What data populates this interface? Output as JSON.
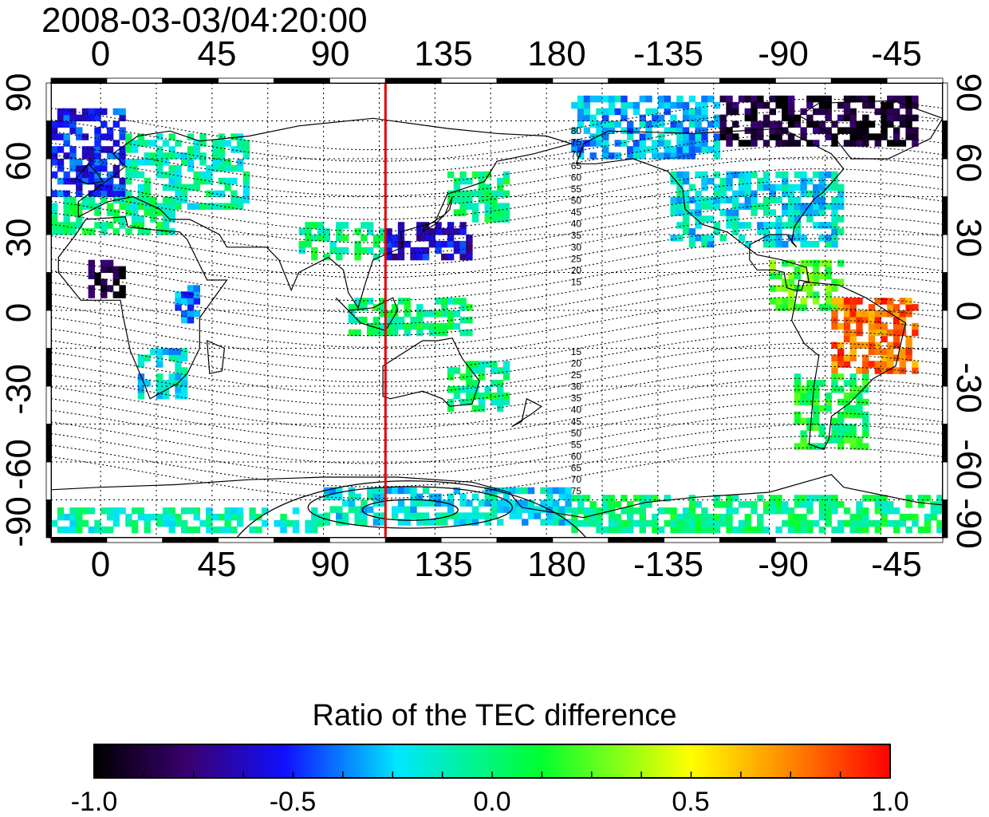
{
  "title": "2008-03-03/04:20:00",
  "axes": {
    "top_ticks": [
      "0",
      "45",
      "90",
      "135",
      "180",
      "-135",
      "-90",
      "-45"
    ],
    "bottom_ticks": [
      "0",
      "45",
      "90",
      "135",
      "180",
      "-135",
      "-90",
      "-45"
    ],
    "left_ticks": [
      "90",
      "60",
      "30",
      "0",
      "-30",
      "-60",
      "-90"
    ],
    "right_ticks": [
      "90",
      "60",
      "30",
      "0",
      "-30",
      "-60",
      "-90"
    ]
  },
  "contour_labels_north": [
    "80",
    "75",
    "70",
    "65",
    "60",
    "55",
    "50",
    "45",
    "40",
    "35",
    "30",
    "25",
    "20",
    "15"
  ],
  "contour_labels_south": [
    "15",
    "20",
    "25",
    "30",
    "35",
    "40",
    "45",
    "50",
    "55",
    "60",
    "65",
    "70",
    "75"
  ],
  "meridian_marker": {
    "longitude": 115,
    "color": "#e00000"
  },
  "colorbar": {
    "title": "Ratio of the TEC difference",
    "ticks": [
      "-1.0",
      "-0.5",
      "0.0",
      "0.5",
      "1.0"
    ],
    "range": [
      -1.0,
      1.0
    ],
    "colors": [
      "#000000",
      "#3a0070",
      "#1010ff",
      "#00e6ff",
      "#00ff30",
      "#ffff00",
      "#ff8000",
      "#ff0000"
    ]
  },
  "chart_data": {
    "type": "heatmap",
    "title": "2008-03-03/04:20:00",
    "x_range_deg": [
      -20,
      340
    ],
    "y_range_deg": [
      -90,
      90
    ],
    "value_range": [
      -1.0,
      1.0
    ],
    "value_label": "Ratio of the TEC difference",
    "grid": true,
    "regions": [
      {
        "lon": [
          -20,
          10
        ],
        "lat": [
          45,
          80
        ],
        "value": -0.5
      },
      {
        "lon": [
          10,
          60
        ],
        "lat": [
          40,
          70
        ],
        "value": -0.1
      },
      {
        "lon": [
          -20,
          30
        ],
        "lat": [
          30,
          45
        ],
        "value": 0.0
      },
      {
        "lon": [
          -5,
          10
        ],
        "lat": [
          5,
          20
        ],
        "value": -0.9
      },
      {
        "lon": [
          30,
          40
        ],
        "lat": [
          -5,
          10
        ],
        "value": -0.4
      },
      {
        "lon": [
          15,
          35
        ],
        "lat": [
          -35,
          -15
        ],
        "value": -0.2
      },
      {
        "lon": [
          80,
          115
        ],
        "lat": [
          20,
          35
        ],
        "value": 0.0
      },
      {
        "lon": [
          115,
          150
        ],
        "lat": [
          20,
          35
        ],
        "value": -0.6
      },
      {
        "lon": [
          140,
          165
        ],
        "lat": [
          35,
          55
        ],
        "value": 0.0
      },
      {
        "lon": [
          100,
          150
        ],
        "lat": [
          -10,
          5
        ],
        "value": 0.0
      },
      {
        "lon": [
          140,
          165
        ],
        "lat": [
          -40,
          -20
        ],
        "value": 0.0
      },
      {
        "lon": [
          190,
          250
        ],
        "lat": [
          60,
          85
        ],
        "value": -0.3
      },
      {
        "lon": [
          250,
          330
        ],
        "lat": [
          65,
          85
        ],
        "value": -0.9
      },
      {
        "lon": [
          230,
          300
        ],
        "lat": [
          25,
          55
        ],
        "value": -0.2
      },
      {
        "lon": [
          270,
          300
        ],
        "lat": [
          0,
          20
        ],
        "value": 0.2
      },
      {
        "lon": [
          295,
          330
        ],
        "lat": [
          -25,
          5
        ],
        "value": 0.8
      },
      {
        "lon": [
          280,
          310
        ],
        "lat": [
          -55,
          -25
        ],
        "value": 0.1
      },
      {
        "lon": [
          90,
          190
        ],
        "lat": [
          -85,
          -70
        ],
        "value": -0.2
      },
      {
        "lon": [
          190,
          340
        ],
        "lat": [
          -88,
          -75
        ],
        "value": 0.0
      },
      {
        "lon": [
          -20,
          90
        ],
        "lat": [
          -88,
          -80
        ],
        "value": -0.1
      }
    ]
  }
}
